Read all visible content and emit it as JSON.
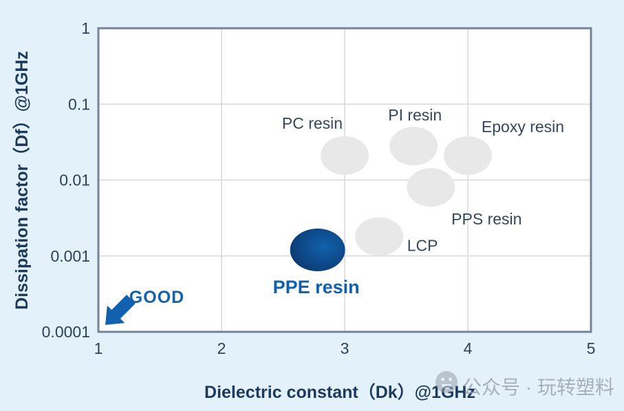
{
  "colors": {
    "background": "#e3f1fb",
    "plot_background": "#ffffff",
    "border": "#72839a",
    "grid": "#d8d8d8",
    "tick_text": "#2e4257",
    "axis_text": "#1d3a5c",
    "label_text": "#33475e",
    "accent": "#1261ae",
    "point_gray": "#e8e8e8",
    "point_blue_inner": "#1261ae",
    "point_blue_outer": "#0a3265",
    "watermark": "#98a1aa"
  },
  "chart_data": {
    "type": "scatter",
    "title": "",
    "xlabel": "Dielectric constant（Dk）@1GHz",
    "ylabel": "Dissipation factor（Df）@1GHz",
    "x_scale": "linear",
    "y_scale": "log",
    "xlim": [
      1,
      5
    ],
    "ylim": [
      0.0001,
      1
    ],
    "x_ticks": [
      1,
      2,
      3,
      4,
      5
    ],
    "x_tick_labels": [
      "1",
      "2",
      "3",
      "4",
      "5"
    ],
    "y_ticks": [
      1,
      0.1,
      0.01,
      0.001,
      0.0001
    ],
    "y_tick_labels": [
      "1",
      "0.1",
      "0.01",
      "0.001",
      "0.0001"
    ],
    "grid": true,
    "legend": false,
    "points": [
      {
        "label": "PC resin",
        "dk": 3.0,
        "df": 0.021,
        "highlight": false,
        "label_offset": [
          -47,
          -39
        ]
      },
      {
        "label": "PI resin",
        "dk": 3.56,
        "df": 0.028,
        "highlight": false,
        "label_offset": [
          2,
          -37
        ]
      },
      {
        "label": "Epoxy resin",
        "dk": 4.0,
        "df": 0.021,
        "highlight": false,
        "label_offset": [
          80,
          -34
        ]
      },
      {
        "label": "PPS resin",
        "dk": 3.7,
        "df": 0.008,
        "highlight": false,
        "label_offset": [
          81,
          54
        ]
      },
      {
        "label": "LCP",
        "dk": 3.28,
        "df": 0.0018,
        "highlight": false,
        "label_offset": [
          63,
          21
        ]
      },
      {
        "label": "PPE resin",
        "dk": 2.78,
        "df": 0.0012,
        "highlight": true,
        "label_offset": [
          -2,
          63
        ]
      }
    ],
    "annotation": {
      "text": "GOOD",
      "direction": "down-left"
    }
  },
  "watermark": {
    "text": "公众号 · 玩转塑料",
    "icon": "wechat-official-account-icon"
  }
}
